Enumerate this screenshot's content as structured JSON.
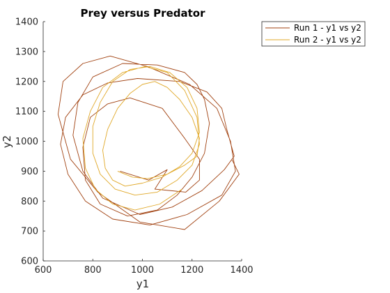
{
  "chart_data": {
    "type": "line",
    "title": "Prey versus Predator",
    "xlabel": "y1",
    "ylabel": "y2",
    "xlim": [
      600,
      1400
    ],
    "ylim": [
      600,
      1400
    ],
    "xticks": [
      600,
      800,
      1000,
      1200,
      1400
    ],
    "yticks": [
      600,
      700,
      800,
      900,
      1000,
      1100,
      1200,
      1300,
      1400
    ],
    "grid": false,
    "legend_position": "outside-top-right",
    "series": [
      {
        "name": "Run 1 - y1 vs y2",
        "color": "#a0400f",
        "x": [
          910,
          1025,
          1100,
          1050,
          1175,
          1230,
          1230,
          1170,
          1080,
          950,
          860,
          790,
          760,
          770,
          830,
          940,
          1060,
          1140,
          1200,
          1250,
          1270,
          1250,
          1220,
          1170,
          1060,
          920,
          800,
          740,
          720,
          760,
          840,
          990,
          1120,
          1240,
          1330,
          1370,
          1340,
          1320,
          1260,
          1150,
          980,
          860,
          760,
          690,
          670,
          700,
          770,
          880,
          1030,
          1180,
          1320,
          1375,
          1355,
          1300,
          1190,
          1020,
          870,
          760,
          680,
          660,
          710,
          820,
          990,
          1170,
          1310,
          1390,
          1360
        ],
        "y": [
          900,
          870,
          905,
          840,
          830,
          870,
          940,
          1010,
          1110,
          1145,
          1125,
          1080,
          980,
          870,
          790,
          750,
          770,
          820,
          880,
          960,
          1060,
          1140,
          1190,
          1230,
          1255,
          1260,
          1215,
          1130,
          1020,
          900,
          810,
          755,
          780,
          835,
          905,
          950,
          1040,
          1110,
          1165,
          1200,
          1210,
          1195,
          1155,
          1080,
          990,
          890,
          800,
          740,
          720,
          755,
          820,
          900,
          1000,
          1110,
          1190,
          1250,
          1285,
          1260,
          1200,
          1090,
          940,
          830,
          730,
          705,
          800,
          890,
          940
        ]
      },
      {
        "name": "Run 2 - y1 vs y2",
        "color": "#e0a828",
        "x": [
          900,
          960,
          1020,
          1100,
          1170,
          1220,
          1230,
          1200,
          1150,
          1100,
          1050,
          1000,
          950,
          900,
          860,
          840,
          850,
          880,
          930,
          1000,
          1080,
          1150,
          1200,
          1230,
          1220,
          1180,
          1110,
          1030,
          950,
          880,
          830,
          800,
          800,
          830,
          890,
          970,
          1060,
          1140,
          1200,
          1230,
          1220,
          1170,
          1100,
          1010,
          920,
          840,
          790,
          760,
          770,
          810,
          880,
          970,
          1070,
          1160
        ],
        "y": [
          900,
          880,
          875,
          890,
          920,
          950,
          1010,
          1080,
          1140,
          1180,
          1200,
          1190,
          1160,
          1110,
          1040,
          970,
          910,
          870,
          850,
          860,
          880,
          915,
          960,
          1030,
          1110,
          1180,
          1230,
          1250,
          1240,
          1200,
          1130,
          1050,
          960,
          890,
          840,
          820,
          830,
          870,
          920,
          990,
          1080,
          1170,
          1230,
          1250,
          1230,
          1180,
          1100,
          1010,
          910,
          840,
          790,
          770,
          790,
          840
        ]
      }
    ]
  }
}
